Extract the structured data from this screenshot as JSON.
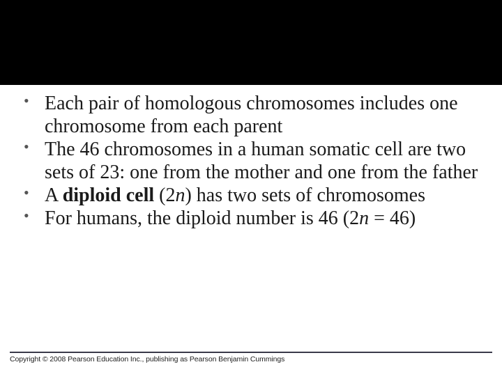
{
  "slide": {
    "header_band_color": "#000000",
    "background_color": "#ffffff",
    "bullets": [
      {
        "pre": "Each pair of homologous chromosomes includes one chromosome from each parent",
        "bold": "",
        "post": ""
      },
      {
        "pre": "The 46 chromosomes in a human somatic cell are two sets of 23: one from the mother and one from the father",
        "bold": "",
        "post": ""
      },
      {
        "pre": "A ",
        "bold": "diploid cell",
        "post_open": " (2",
        "italic": "n",
        "post_close": ") has two sets of chromosomes"
      },
      {
        "pre": "For humans, the diploid number is 46 (2",
        "italic": "n",
        "post": " = 46)"
      }
    ],
    "body_fontsize": 28,
    "body_color": "#1a1a1a",
    "bullet_marker_color": "#555555",
    "footer_line_color": "#3a3a4a"
  },
  "copyright": "Copyright © 2008 Pearson Education Inc., publishing as Pearson Benjamin Cummings"
}
